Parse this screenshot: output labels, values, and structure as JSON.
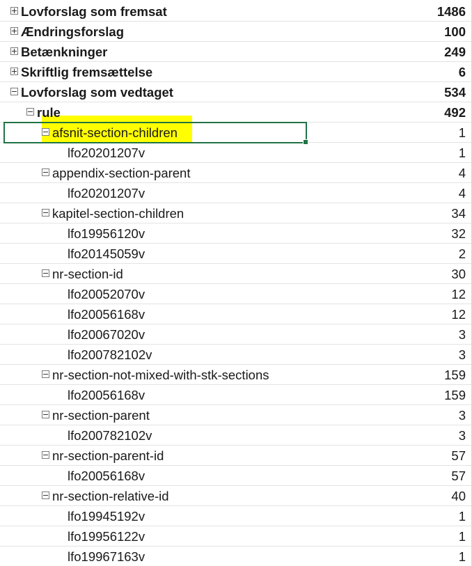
{
  "pivot": {
    "rows": [
      {
        "label": "Lovforslag som fremsat",
        "value": "1486",
        "level": 0,
        "toggle": "plus",
        "bold": true
      },
      {
        "label": "Ændringsforslag",
        "value": "100",
        "level": 0,
        "toggle": "plus",
        "bold": true
      },
      {
        "label": "Betænkninger",
        "value": "249",
        "level": 0,
        "toggle": "plus",
        "bold": true
      },
      {
        "label": "Skriftlig fremsættelse",
        "value": "6",
        "level": 0,
        "toggle": "plus",
        "bold": true
      },
      {
        "label": "Lovforslag som vedtaget",
        "value": "534",
        "level": 0,
        "toggle": "minus",
        "bold": true
      },
      {
        "label": "rule",
        "value": "492",
        "level": 1,
        "toggle": "minus",
        "bold": true
      },
      {
        "label": "afsnit-section-children",
        "value": "1",
        "level": 2,
        "toggle": "minus",
        "bold": false,
        "selected": true
      },
      {
        "label": "lfo20201207v",
        "value": "1",
        "level": 3,
        "toggle": "",
        "bold": false
      },
      {
        "label": "appendix-section-parent",
        "value": "4",
        "level": 2,
        "toggle": "minus",
        "bold": false
      },
      {
        "label": "lfo20201207v",
        "value": "4",
        "level": 3,
        "toggle": "",
        "bold": false
      },
      {
        "label": "kapitel-section-children",
        "value": "34",
        "level": 2,
        "toggle": "minus",
        "bold": false
      },
      {
        "label": "lfo19956120v",
        "value": "32",
        "level": 3,
        "toggle": "",
        "bold": false
      },
      {
        "label": "lfo20145059v",
        "value": "2",
        "level": 3,
        "toggle": "",
        "bold": false
      },
      {
        "label": "nr-section-id",
        "value": "30",
        "level": 2,
        "toggle": "minus",
        "bold": false
      },
      {
        "label": "lfo20052070v",
        "value": "12",
        "level": 3,
        "toggle": "",
        "bold": false
      },
      {
        "label": "lfo20056168v",
        "value": "12",
        "level": 3,
        "toggle": "",
        "bold": false
      },
      {
        "label": "lfo20067020v",
        "value": "3",
        "level": 3,
        "toggle": "",
        "bold": false
      },
      {
        "label": "lfo200782102v",
        "value": "3",
        "level": 3,
        "toggle": "",
        "bold": false
      },
      {
        "label": "nr-section-not-mixed-with-stk-sections",
        "value": "159",
        "level": 2,
        "toggle": "minus",
        "bold": false
      },
      {
        "label": "lfo20056168v",
        "value": "159",
        "level": 3,
        "toggle": "",
        "bold": false
      },
      {
        "label": "nr-section-parent",
        "value": "3",
        "level": 2,
        "toggle": "minus",
        "bold": false
      },
      {
        "label": "lfo200782102v",
        "value": "3",
        "level": 3,
        "toggle": "",
        "bold": false
      },
      {
        "label": "nr-section-parent-id",
        "value": "57",
        "level": 2,
        "toggle": "minus",
        "bold": false
      },
      {
        "label": "lfo20056168v",
        "value": "57",
        "level": 3,
        "toggle": "",
        "bold": false
      },
      {
        "label": "nr-section-relative-id",
        "value": "40",
        "level": 2,
        "toggle": "minus",
        "bold": false
      },
      {
        "label": "lfo19945192v",
        "value": "1",
        "level": 3,
        "toggle": "",
        "bold": false
      },
      {
        "label": "lfo19956122v",
        "value": "1",
        "level": 3,
        "toggle": "",
        "bold": false
      },
      {
        "label": "lfo19967163v",
        "value": "1",
        "level": 3,
        "toggle": "",
        "bold": false
      }
    ]
  },
  "colors": {
    "highlight": "#ffff00",
    "selection_border": "#217346",
    "grid_line": "#e3e3e3"
  }
}
